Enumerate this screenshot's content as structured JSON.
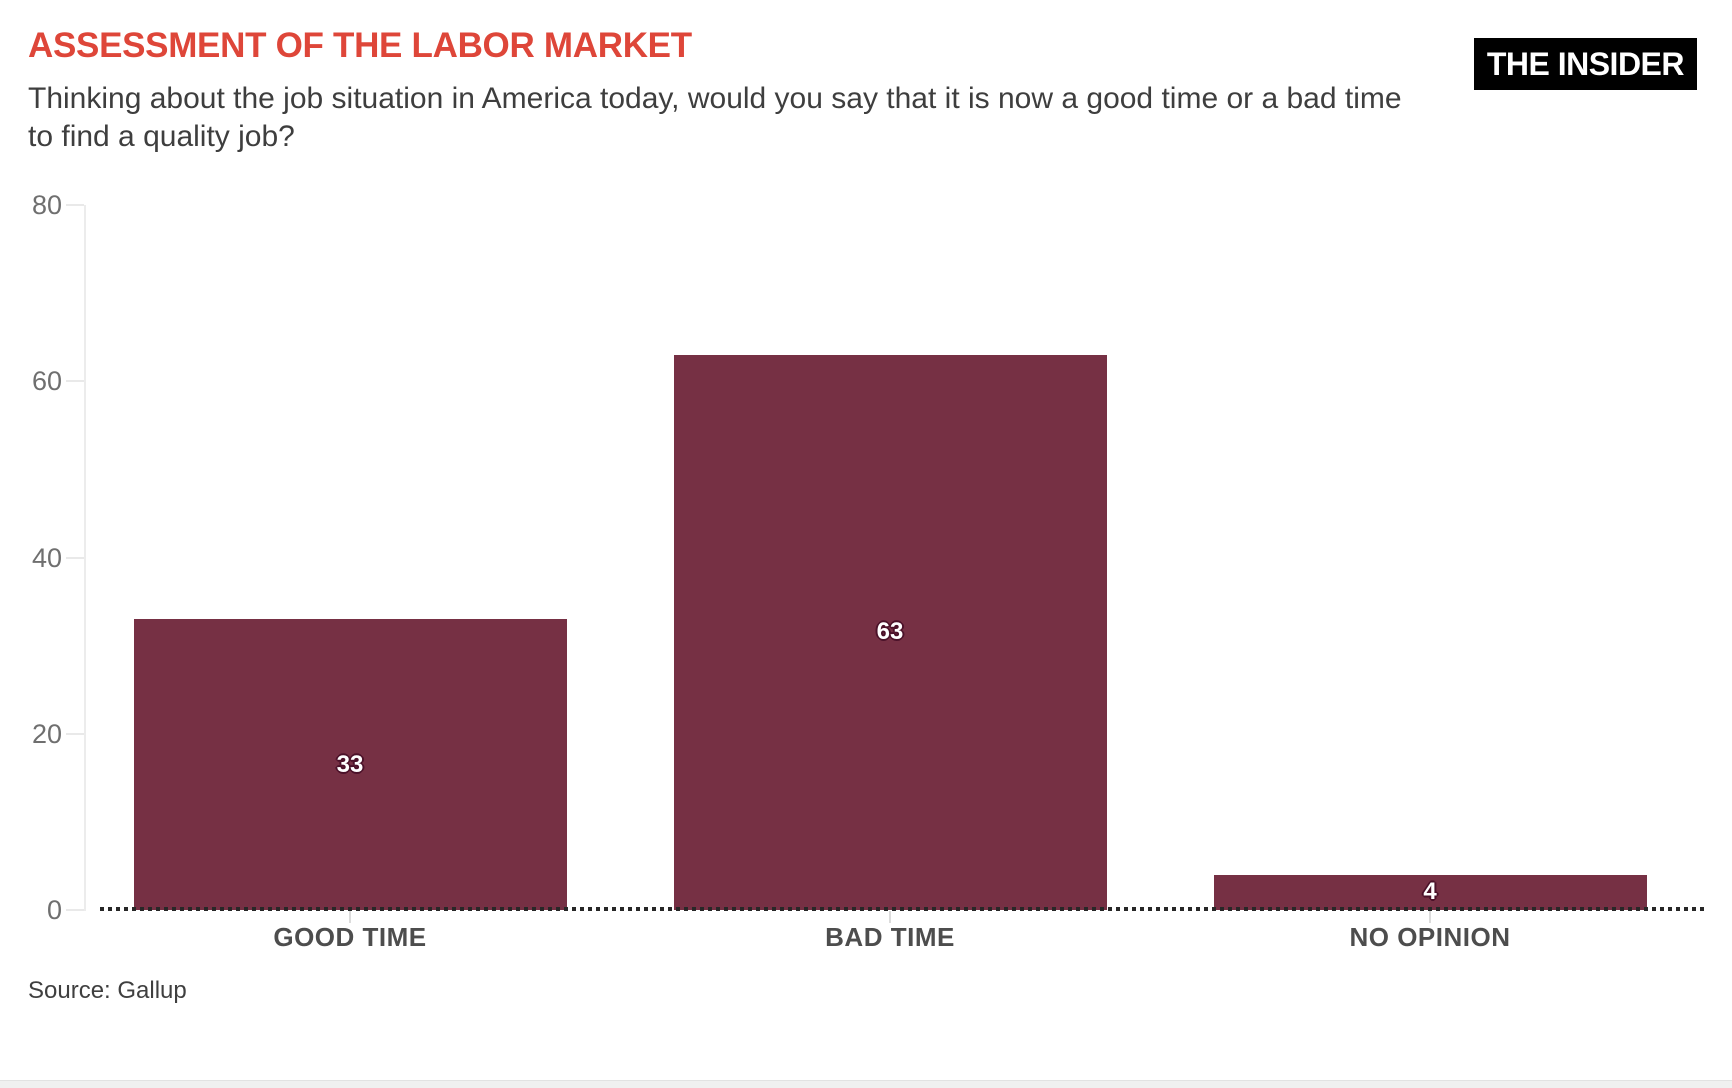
{
  "header": {
    "title": "ASSESSMENT OF THE LABOR MARKET",
    "subtitle_line1": "Thinking about the job situation in America today, would you say that it is now a good time or a bad time",
    "subtitle_line2": "to find a quality job?",
    "logo": "THE INSIDER"
  },
  "source": "Source: Gallup",
  "colors": {
    "accent_red": "#de4639",
    "bar": "#763044",
    "bar_label_outline": "#4b1129",
    "logo_bg": "#000000",
    "logo_text": "#ffffff"
  },
  "chart_data": {
    "type": "bar",
    "title": "ASSESSMENT OF THE LABOR MARKET",
    "subtitle": "Thinking about the job situation in America today, would you say that it is now a good time or a bad time to find a quality job?",
    "categories": [
      "GOOD TIME",
      "BAD TIME",
      "NO OPINION"
    ],
    "values": [
      33,
      63,
      4
    ],
    "value_labels": [
      33,
      63,
      4
    ],
    "xlabel": "",
    "ylabel": "",
    "ylim": [
      0,
      80
    ],
    "yticks": [
      0,
      20,
      40,
      60,
      80
    ],
    "grid": false,
    "legend": false,
    "bar_color": "#763044",
    "source": "Source: Gallup"
  }
}
